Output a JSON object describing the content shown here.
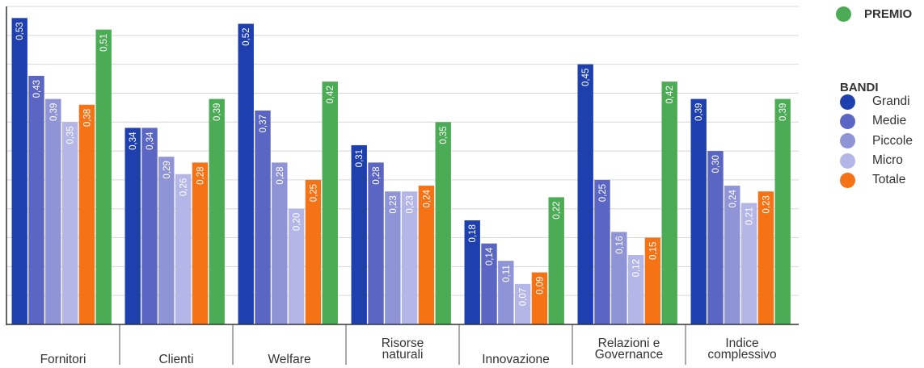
{
  "chart_data": {
    "type": "bar",
    "categories": [
      [
        "Fornitori"
      ],
      [
        "Clienti"
      ],
      [
        "Welfare"
      ],
      [
        "Risorse",
        "naturali"
      ],
      [
        "Innovazione"
      ],
      [
        "Relazioni e",
        "Governance"
      ],
      [
        "Indice",
        "complessivo"
      ]
    ],
    "series": [
      {
        "name": "Grandi",
        "color": "#1e3fae",
        "values": [
          0.53,
          0.34,
          0.52,
          0.31,
          0.18,
          0.45,
          0.39
        ],
        "labels": [
          "0,53",
          "0,34",
          "0,52",
          "0,31",
          "0,18",
          "0,45",
          "0,39"
        ]
      },
      {
        "name": "Medie",
        "color": "#5b66c4",
        "values": [
          0.43,
          0.34,
          0.37,
          0.28,
          0.14,
          0.25,
          0.3
        ],
        "labels": [
          "0,43",
          "0,34",
          "0,37",
          "0,28",
          "0,14",
          "0,25",
          "0,30"
        ]
      },
      {
        "name": "Piccole",
        "color": "#8f94d6",
        "values": [
          0.39,
          0.29,
          0.28,
          0.23,
          0.11,
          0.16,
          0.24
        ],
        "labels": [
          "0,39",
          "0,29",
          "0,28",
          "0,23",
          "0,11",
          "0,16",
          "0,24"
        ]
      },
      {
        "name": "Micro",
        "color": "#b3b6e6",
        "values": [
          0.35,
          0.26,
          0.2,
          0.23,
          0.07,
          0.12,
          0.21
        ],
        "labels": [
          "0,35",
          "0,26",
          "0,20",
          "0,23",
          "0,07",
          "0,12",
          "0,21"
        ]
      },
      {
        "name": "Totale",
        "color": "#f57215",
        "values": [
          0.38,
          0.28,
          0.25,
          0.24,
          0.09,
          0.15,
          0.23
        ],
        "labels": [
          "0,38",
          "0,28",
          "0,25",
          "0,24",
          "0,09",
          "0,15",
          "0,23"
        ]
      },
      {
        "name": "PREMIO",
        "color": "#4cac56",
        "values": [
          0.51,
          0.39,
          0.42,
          0.35,
          0.22,
          0.42,
          0.39
        ],
        "labels": [
          "0,51",
          "0,39",
          "0,42",
          "0,35",
          "0,22",
          "0,42",
          "0,39"
        ]
      }
    ],
    "ylim": [
      0,
      0.55
    ],
    "grid": true,
    "legend_position": "right"
  },
  "legend": {
    "premio": {
      "label": "PREMIO",
      "color": "#4cac56"
    },
    "bandi_title": "BANDI",
    "items": [
      {
        "label": "Grandi",
        "color": "#1e3fae"
      },
      {
        "label": "Medie",
        "color": "#5b66c4"
      },
      {
        "label": "Piccole",
        "color": "#8f94d6"
      },
      {
        "label": "Micro",
        "color": "#b3b6e6"
      },
      {
        "label": "Totale",
        "color": "#f57215"
      }
    ]
  }
}
